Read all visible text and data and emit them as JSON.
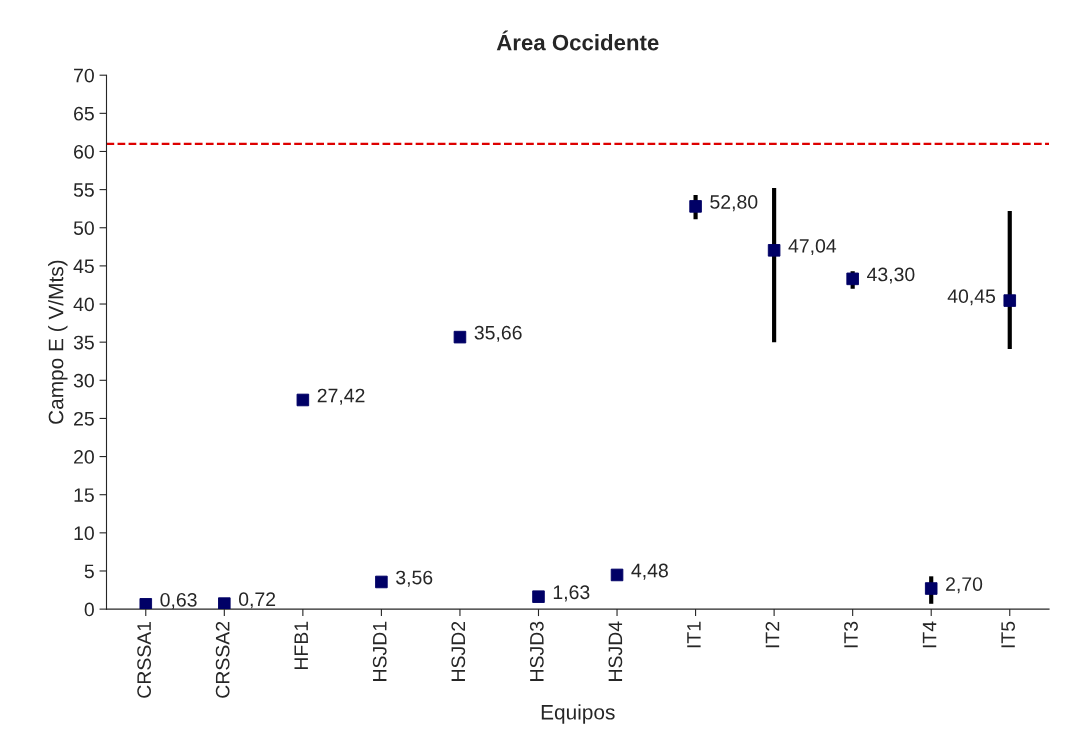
{
  "chart_data": {
    "type": "scatter",
    "title": "Área Occidente",
    "xlabel": "Equipos",
    "ylabel": "Campo E ( V/Mts)",
    "categories": [
      "CRSSA1",
      "CRSSA2",
      "HFB1",
      "HSJD1",
      "HSJD2",
      "HSJD3",
      "HSJD4",
      "IT1",
      "IT2",
      "IT3",
      "IT4",
      "IT5"
    ],
    "values": [
      0.63,
      0.72,
      27.42,
      3.56,
      35.66,
      1.63,
      4.48,
      52.8,
      47.04,
      43.3,
      2.7,
      40.45
    ],
    "value_labels": [
      "0,63",
      "0,72",
      "27,42",
      "3,56",
      "35,66",
      "1,63",
      "4,48",
      "52,80",
      "47,04",
      "43,30",
      "2,70",
      "40,45"
    ],
    "errors": [
      null,
      null,
      null,
      null,
      null,
      null,
      null,
      [
        51.1,
        54.3
      ],
      [
        35.0,
        55.2
      ],
      [
        42.0,
        44.3
      ],
      [
        0.7,
        4.3
      ],
      [
        34.1,
        52.2
      ]
    ],
    "color": "#000066",
    "marker": "square",
    "ylim": [
      0,
      70
    ],
    "yticks": [
      0,
      5,
      10,
      15,
      20,
      25,
      30,
      35,
      40,
      45,
      50,
      55,
      60,
      65,
      70
    ],
    "ref_lines": [
      {
        "axis": "y",
        "value": 61,
        "color": "#dd0000",
        "line_style": "dashed"
      }
    ],
    "grid": false,
    "legend": false
  }
}
